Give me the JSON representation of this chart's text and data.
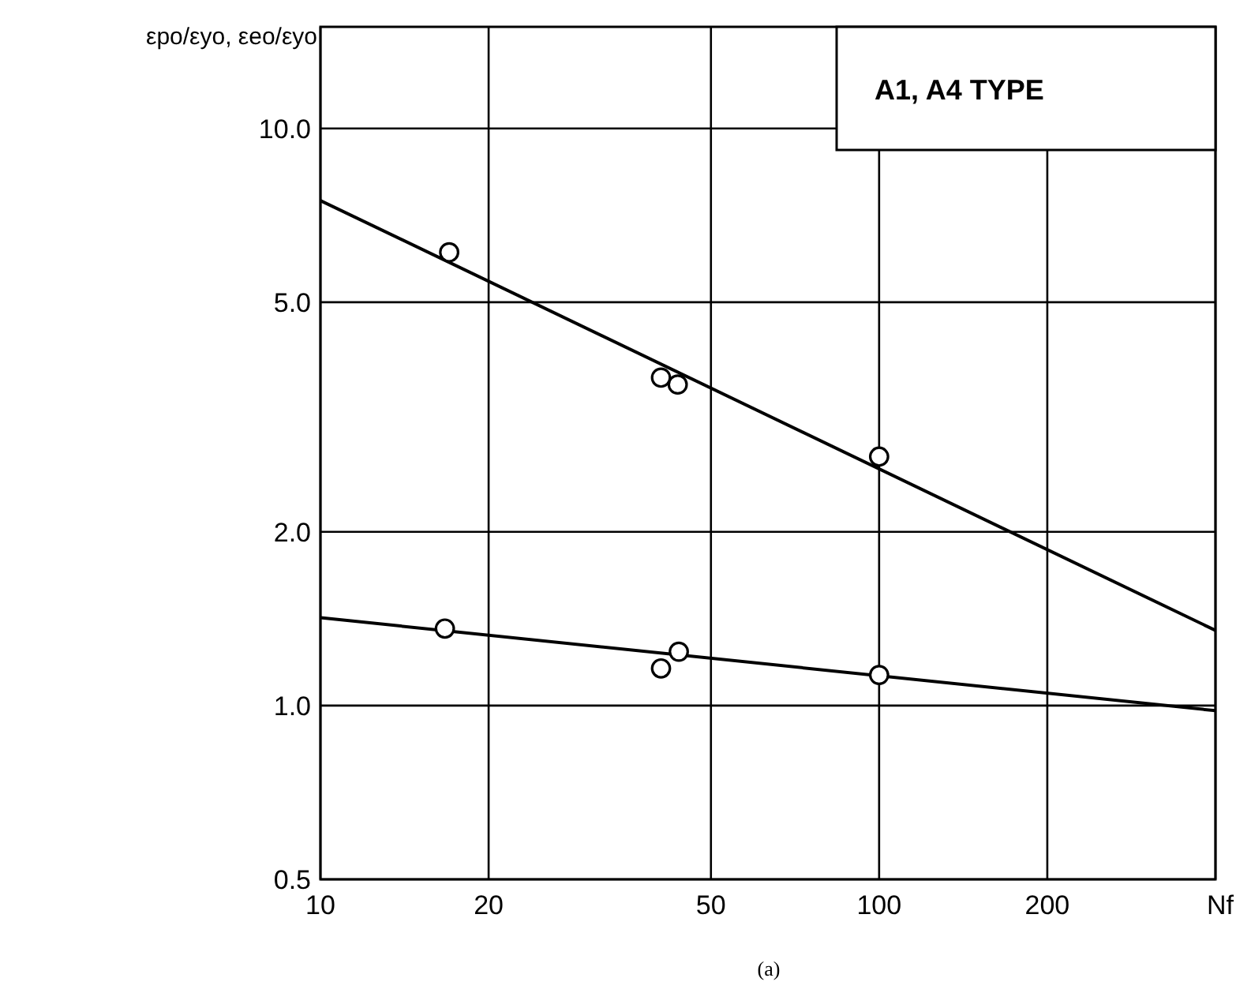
{
  "chart_data": {
    "type": "scatter",
    "ylabel": "εpo/εyo, εeo/εyo",
    "xlabel": "Nf",
    "annotations": [
      "A1, A4 TYPE",
      "(a)"
    ],
    "log": "xy",
    "grid": true,
    "line_style": "solid",
    "xlim": [
      10,
      400
    ],
    "xticks": [
      10,
      20,
      50,
      100,
      200,
      {
        "value": 400,
        "label": null
      }
    ],
    "ylim": [
      0.5,
      15
    ],
    "yticks": [
      {
        "value": 0.5,
        "label": "0.5"
      },
      {
        "value": 1,
        "label": "1.0"
      },
      {
        "value": 2,
        "label": "2.0"
      },
      {
        "value": 5,
        "label": "5.0"
      },
      {
        "value": 10,
        "label": "10.0"
      }
    ],
    "series": [
      {
        "color": "#000000",
        "marker": "circle",
        "x": [
          17,
          40.7,
          43.6,
          100
        ],
        "values": [
          6.1,
          3.7,
          3.6,
          2.7
        ]
      },
      {
        "color": "#000000",
        "marker": "circle",
        "x": [
          16.7,
          40.7,
          43.8,
          100
        ],
        "values": [
          1.36,
          1.16,
          1.24,
          1.13
        ]
      },
      {
        "type": "line",
        "color": "#000000",
        "x": [
          10,
          400
        ],
        "values": [
          7.5,
          1.35
        ]
      },
      {
        "type": "line",
        "color": "#000000",
        "x": [
          10,
          400
        ],
        "values": [
          1.42,
          0.98
        ]
      }
    ]
  }
}
